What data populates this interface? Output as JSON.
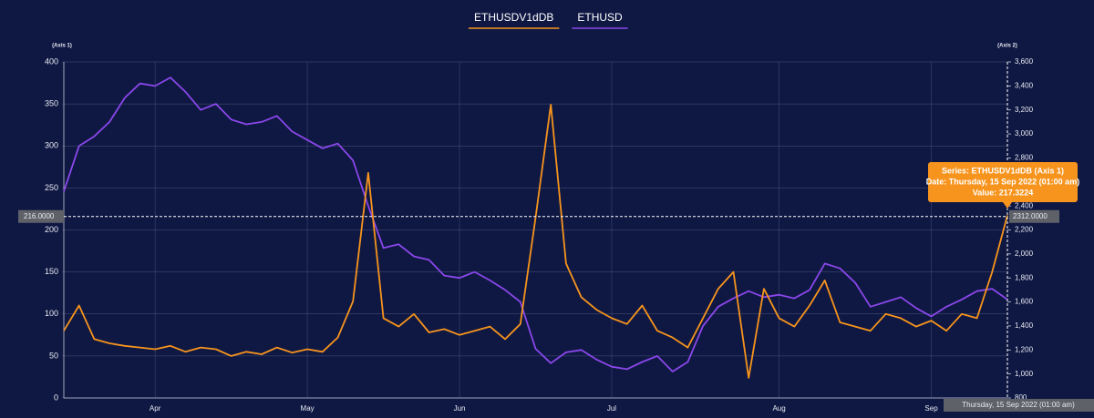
{
  "chart_data": {
    "type": "line",
    "categories": [
      null,
      null,
      null,
      null,
      null,
      null,
      "Apr",
      null,
      null,
      null,
      null,
      null,
      null,
      null,
      null,
      null,
      "May",
      null,
      null,
      null,
      null,
      null,
      null,
      null,
      null,
      null,
      "Jun",
      null,
      null,
      null,
      null,
      null,
      null,
      null,
      null,
      null,
      "Jul",
      null,
      null,
      null,
      null,
      null,
      null,
      null,
      null,
      null,
      null,
      "Aug",
      null,
      null,
      null,
      null,
      null,
      null,
      null,
      null,
      null,
      "Sep",
      null,
      null,
      null,
      null,
      null
    ],
    "series": [
      {
        "name": "ETHUSDV1dDB",
        "color": "#f7941d",
        "axis": "y",
        "values": [
          80,
          110,
          70,
          65,
          62,
          60,
          58,
          62,
          55,
          60,
          58,
          50,
          55,
          52,
          60,
          54,
          58,
          55,
          72,
          115,
          268,
          95,
          85,
          100,
          78,
          82,
          75,
          80,
          85,
          70,
          88,
          215,
          349,
          160,
          120,
          105,
          95,
          88,
          110,
          80,
          72,
          60,
          95,
          130,
          150,
          24,
          130,
          95,
          85,
          110,
          140,
          90,
          85,
          80,
          100,
          95,
          85,
          92,
          80,
          100,
          95,
          150,
          217.3224
        ]
      },
      {
        "name": "ETHUSD",
        "color": "#8a47ea",
        "axis": "y2",
        "values": [
          2520,
          2900,
          2980,
          3100,
          3300,
          3420,
          3400,
          3470,
          3350,
          3200,
          3250,
          3120,
          3080,
          3100,
          3150,
          3020,
          2950,
          2880,
          2920,
          2780,
          2400,
          2050,
          2080,
          1980,
          1950,
          1820,
          1800,
          1850,
          1780,
          1700,
          1600,
          1210,
          1090,
          1180,
          1200,
          1120,
          1060,
          1040,
          1100,
          1150,
          1020,
          1100,
          1400,
          1560,
          1630,
          1690,
          1640,
          1660,
          1630,
          1700,
          1920,
          1880,
          1760,
          1560,
          1600,
          1640,
          1550,
          1480,
          1560,
          1620,
          1690,
          1710,
          1620
        ]
      }
    ],
    "ylabel": "(Axis 1)",
    "y2label": "(Axis 2)",
    "ylim": [
      0,
      400
    ],
    "yticks": [
      0,
      50,
      100,
      150,
      200,
      250,
      300,
      350,
      400
    ],
    "y2lim": [
      800,
      3600
    ],
    "y2ticks": [
      800,
      {
        "value": 1000,
        "label": "1,000"
      },
      {
        "value": 1200,
        "label": "1,200"
      },
      {
        "value": 1400,
        "label": "1,400"
      },
      {
        "value": 1600,
        "label": "1,600"
      },
      {
        "value": 1800,
        "label": "1,800"
      },
      {
        "value": 2000,
        "label": "2,000"
      },
      {
        "value": 2200,
        "label": "2,200"
      },
      {
        "value": 2400,
        "label": "2,400"
      },
      {
        "value": 2600,
        "label": "2,600"
      },
      {
        "value": 2800,
        "label": "2,800"
      },
      {
        "value": 3000,
        "label": "3,000"
      },
      {
        "value": 3200,
        "label": "3,200"
      },
      {
        "value": 3400,
        "label": "3,400"
      },
      {
        "value": 3600,
        "label": "3,600"
      }
    ],
    "grid": true,
    "legend": "top",
    "crosshair": {
      "y": {
        "value": 216,
        "label": "216.0000"
      },
      "y2": {
        "value": 2312,
        "label": "2312.0000"
      },
      "x_label": "Thursday, 15 Sep 2022 (01:00 am)"
    },
    "tooltip": {
      "lines": [
        "Series: ETHUSDV1dDB (Axis 1)",
        "Date: Thursday, 15 Sep 2022 (01:00 am)",
        "Value: 217.3224"
      ]
    }
  }
}
